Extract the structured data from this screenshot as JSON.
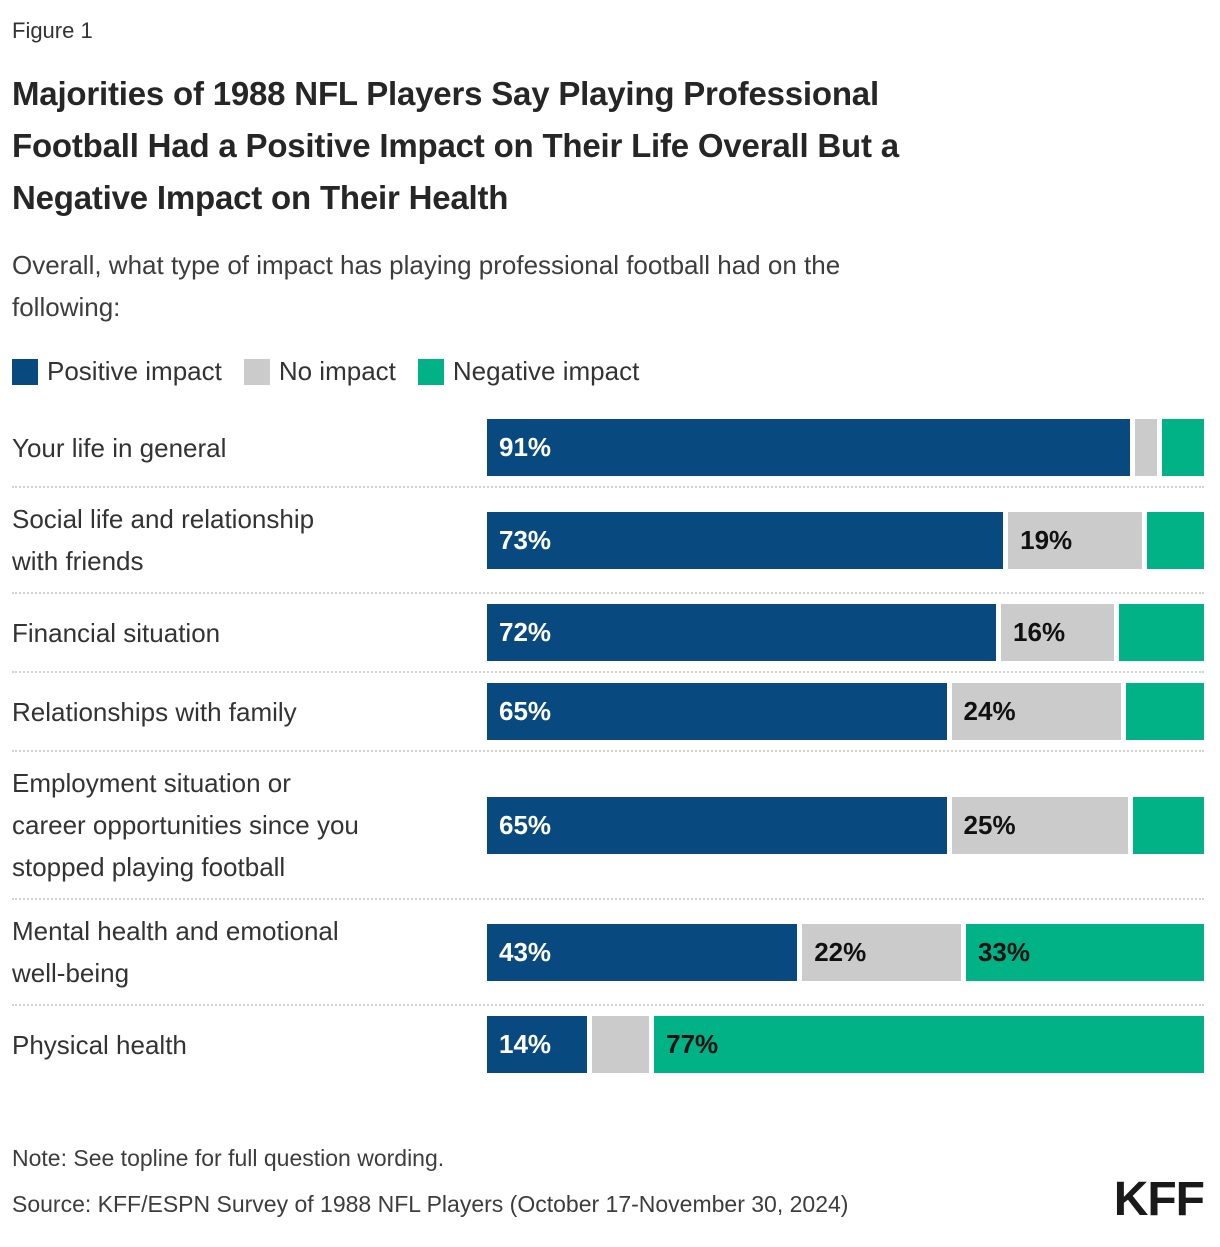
{
  "figure_label": "Figure 1",
  "title": "Majorities of 1988 NFL Players Say Playing Professional\nFootball Had a Positive Impact on Their Life Overall But a\nNegative Impact on Their Health",
  "question": "Overall, what type of impact has playing professional football had on the\nfollowing:",
  "legend": [
    {
      "label": "Positive impact",
      "color": "#084a7f"
    },
    {
      "label": "No impact",
      "color": "#cbcbcb"
    },
    {
      "label": "Negative impact",
      "color": "#00b286"
    }
  ],
  "chart_data": {
    "type": "bar",
    "orientation": "horizontal-stacked",
    "unit": "percent",
    "xlim": [
      0,
      100
    ],
    "grid": false,
    "legend_position": "top",
    "categories": [
      "Your life in general",
      "Social life and relationship with friends",
      "Financial situation",
      "Relationships with family",
      "Employment situation or career opportunities since you stopped playing football",
      "Mental health and emotional well-being",
      "Physical health"
    ],
    "series": [
      {
        "name": "Positive impact",
        "values": [
          91,
          73,
          72,
          65,
          65,
          43,
          14
        ]
      },
      {
        "name": "No impact",
        "values": [
          3,
          19,
          16,
          24,
          25,
          22,
          8
        ]
      },
      {
        "name": "Negative impact",
        "values": [
          6,
          8,
          12,
          11,
          10,
          33,
          77
        ]
      }
    ],
    "value_labels_shown": [
      [
        true,
        false,
        false
      ],
      [
        true,
        true,
        false
      ],
      [
        true,
        true,
        false
      ],
      [
        true,
        true,
        false
      ],
      [
        true,
        true,
        false
      ],
      [
        true,
        true,
        true
      ],
      [
        true,
        false,
        true
      ]
    ],
    "rows": [
      {
        "label": "Your life in general",
        "values": [
          91,
          3,
          6
        ]
      },
      {
        "label": "Social life and relationship\nwith friends",
        "values": [
          73,
          19,
          8
        ]
      },
      {
        "label": "Financial situation",
        "values": [
          72,
          16,
          12
        ]
      },
      {
        "label": "Relationships with family",
        "values": [
          65,
          24,
          11
        ]
      },
      {
        "label": "Employment situation or\ncareer opportunities since you\nstopped playing football",
        "values": [
          65,
          25,
          10
        ]
      },
      {
        "label": "Mental health and emotional\nwell-being",
        "values": [
          43,
          22,
          33
        ]
      },
      {
        "label": "Physical health",
        "values": [
          14,
          8,
          77
        ]
      }
    ]
  },
  "footer": {
    "note": "Note: See topline for full question wording.",
    "source": "Source: KFF/ESPN Survey of 1988 NFL Players (October 17-November 30, 2024)",
    "logo": "KFF"
  }
}
